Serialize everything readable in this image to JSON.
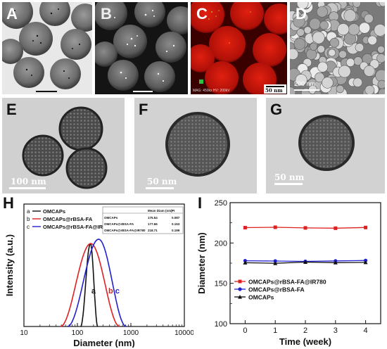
{
  "panels": {
    "a": {
      "label": "A"
    },
    "b": {
      "label": "B"
    },
    "c": {
      "label": "C",
      "scale_bar": "50 nm",
      "instrument_text": "MAG: 450kx  HV: 200kV"
    },
    "d": {
      "label": "D",
      "scale_bar": "200 nm"
    },
    "e": {
      "label": "E",
      "scale_bar": "100 nm"
    },
    "f": {
      "label": "F",
      "scale_bar": "50 nm"
    },
    "g": {
      "label": "G",
      "scale_bar": "50 nm"
    }
  },
  "chart_data": [
    {
      "panel_label": "H",
      "type": "line",
      "xlabel": "Diameter (nm)",
      "ylabel": "Intensity (a.u.)",
      "xscale": "log",
      "xlim": [
        10,
        10000
      ],
      "x_ticks": [
        "10",
        "100",
        "1000",
        "10000"
      ],
      "legend": [
        {
          "key": "a",
          "name": "OMCAPs",
          "color": "#111111"
        },
        {
          "key": "b",
          "name": "OMCAPs@rBSA-FA",
          "color": "#e02020"
        },
        {
          "key": "c",
          "name": "OMCAPs@rBSA-FA@IR780",
          "color": "#2020d0"
        }
      ],
      "table": {
        "columns": [
          "",
          "Mean Diam (nm)",
          "PI"
        ],
        "rows": [
          [
            "OMCAPs",
            "175.54",
            "0.087"
          ],
          [
            "OMCAPs@rBSA-FA",
            "177.66",
            "0.153"
          ],
          [
            "OMCAPs@rBSA-FA@IR780",
            "218.71",
            "0.199"
          ]
        ]
      },
      "series": [
        {
          "key": "a",
          "color": "#111111",
          "peak_x": 175,
          "x_start": 115,
          "x_end": 240,
          "peak_rel": 0.95
        },
        {
          "key": "b",
          "color": "#e02020",
          "peak_x": 178,
          "x_start": 48,
          "x_end": 620,
          "peak_rel": 0.95
        },
        {
          "key": "c",
          "color": "#2020d0",
          "peak_x": 250,
          "x_start": 65,
          "x_end": 820,
          "peak_rel": 1.0
        }
      ],
      "curve_labels": [
        {
          "text": "a",
          "x": 200,
          "rel": 0.38
        },
        {
          "text": "b",
          "x": 420,
          "rel": 0.38
        },
        {
          "text": "c",
          "x": 560,
          "rel": 0.38
        }
      ]
    },
    {
      "panel_label": "I",
      "type": "line",
      "xlabel": "Time (week)",
      "ylabel": "Diameter (nm)",
      "xlim": [
        -0.5,
        4.5
      ],
      "ylim": [
        100,
        250
      ],
      "x_ticks": [
        0,
        1,
        2,
        3,
        4
      ],
      "y_ticks": [
        100,
        150,
        200,
        250
      ],
      "series": [
        {
          "name": "OMCAPs@rBSA-FA@IR780",
          "color": "#e02020",
          "marker": "square",
          "x": [
            0,
            1,
            2,
            3,
            4
          ],
          "y": [
            219,
            219.5,
            218.7,
            218.3,
            219.2
          ]
        },
        {
          "name": "OMCAPs@rBSA-FA",
          "color": "#2020d0",
          "marker": "circle",
          "x": [
            0,
            1,
            2,
            3,
            4
          ],
          "y": [
            178,
            177.6,
            177.2,
            177.8,
            178.3
          ]
        },
        {
          "name": "OMCAPs",
          "color": "#111111",
          "marker": "triangle",
          "x": [
            0,
            1,
            2,
            3,
            4
          ],
          "y": [
            175.5,
            174.8,
            176.3,
            175.6,
            176
          ]
        }
      ]
    }
  ]
}
